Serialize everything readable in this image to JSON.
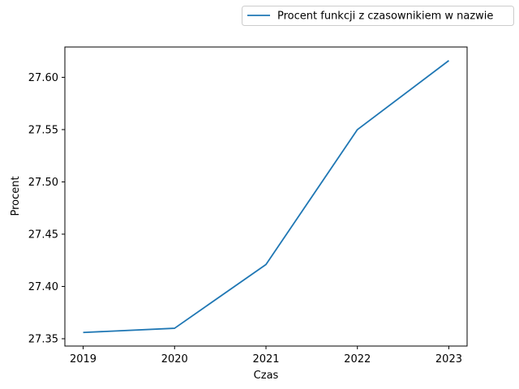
{
  "chart_data": {
    "type": "line",
    "x": [
      2019,
      2020,
      2021,
      2022,
      2023
    ],
    "series": [
      {
        "name": "Procent funkcji z czasownikiem w nazwie",
        "values": [
          27.356,
          27.36,
          27.421,
          27.55,
          27.616
        ],
        "color": "#1f77b4"
      }
    ],
    "xlabel": "Czas",
    "ylabel": "Procent",
    "xticks": [
      "2019",
      "2020",
      "2021",
      "2022",
      "2023"
    ],
    "yticks": [
      "27.35",
      "27.40",
      "27.45",
      "27.50",
      "27.55",
      "27.60"
    ],
    "ytick_values": [
      27.35,
      27.4,
      27.45,
      27.5,
      27.55,
      27.6
    ],
    "xlim": [
      2018.8,
      2023.2
    ],
    "ylim": [
      27.343,
      27.629
    ],
    "grid": false,
    "legend_position": "top-right, outside plot"
  }
}
